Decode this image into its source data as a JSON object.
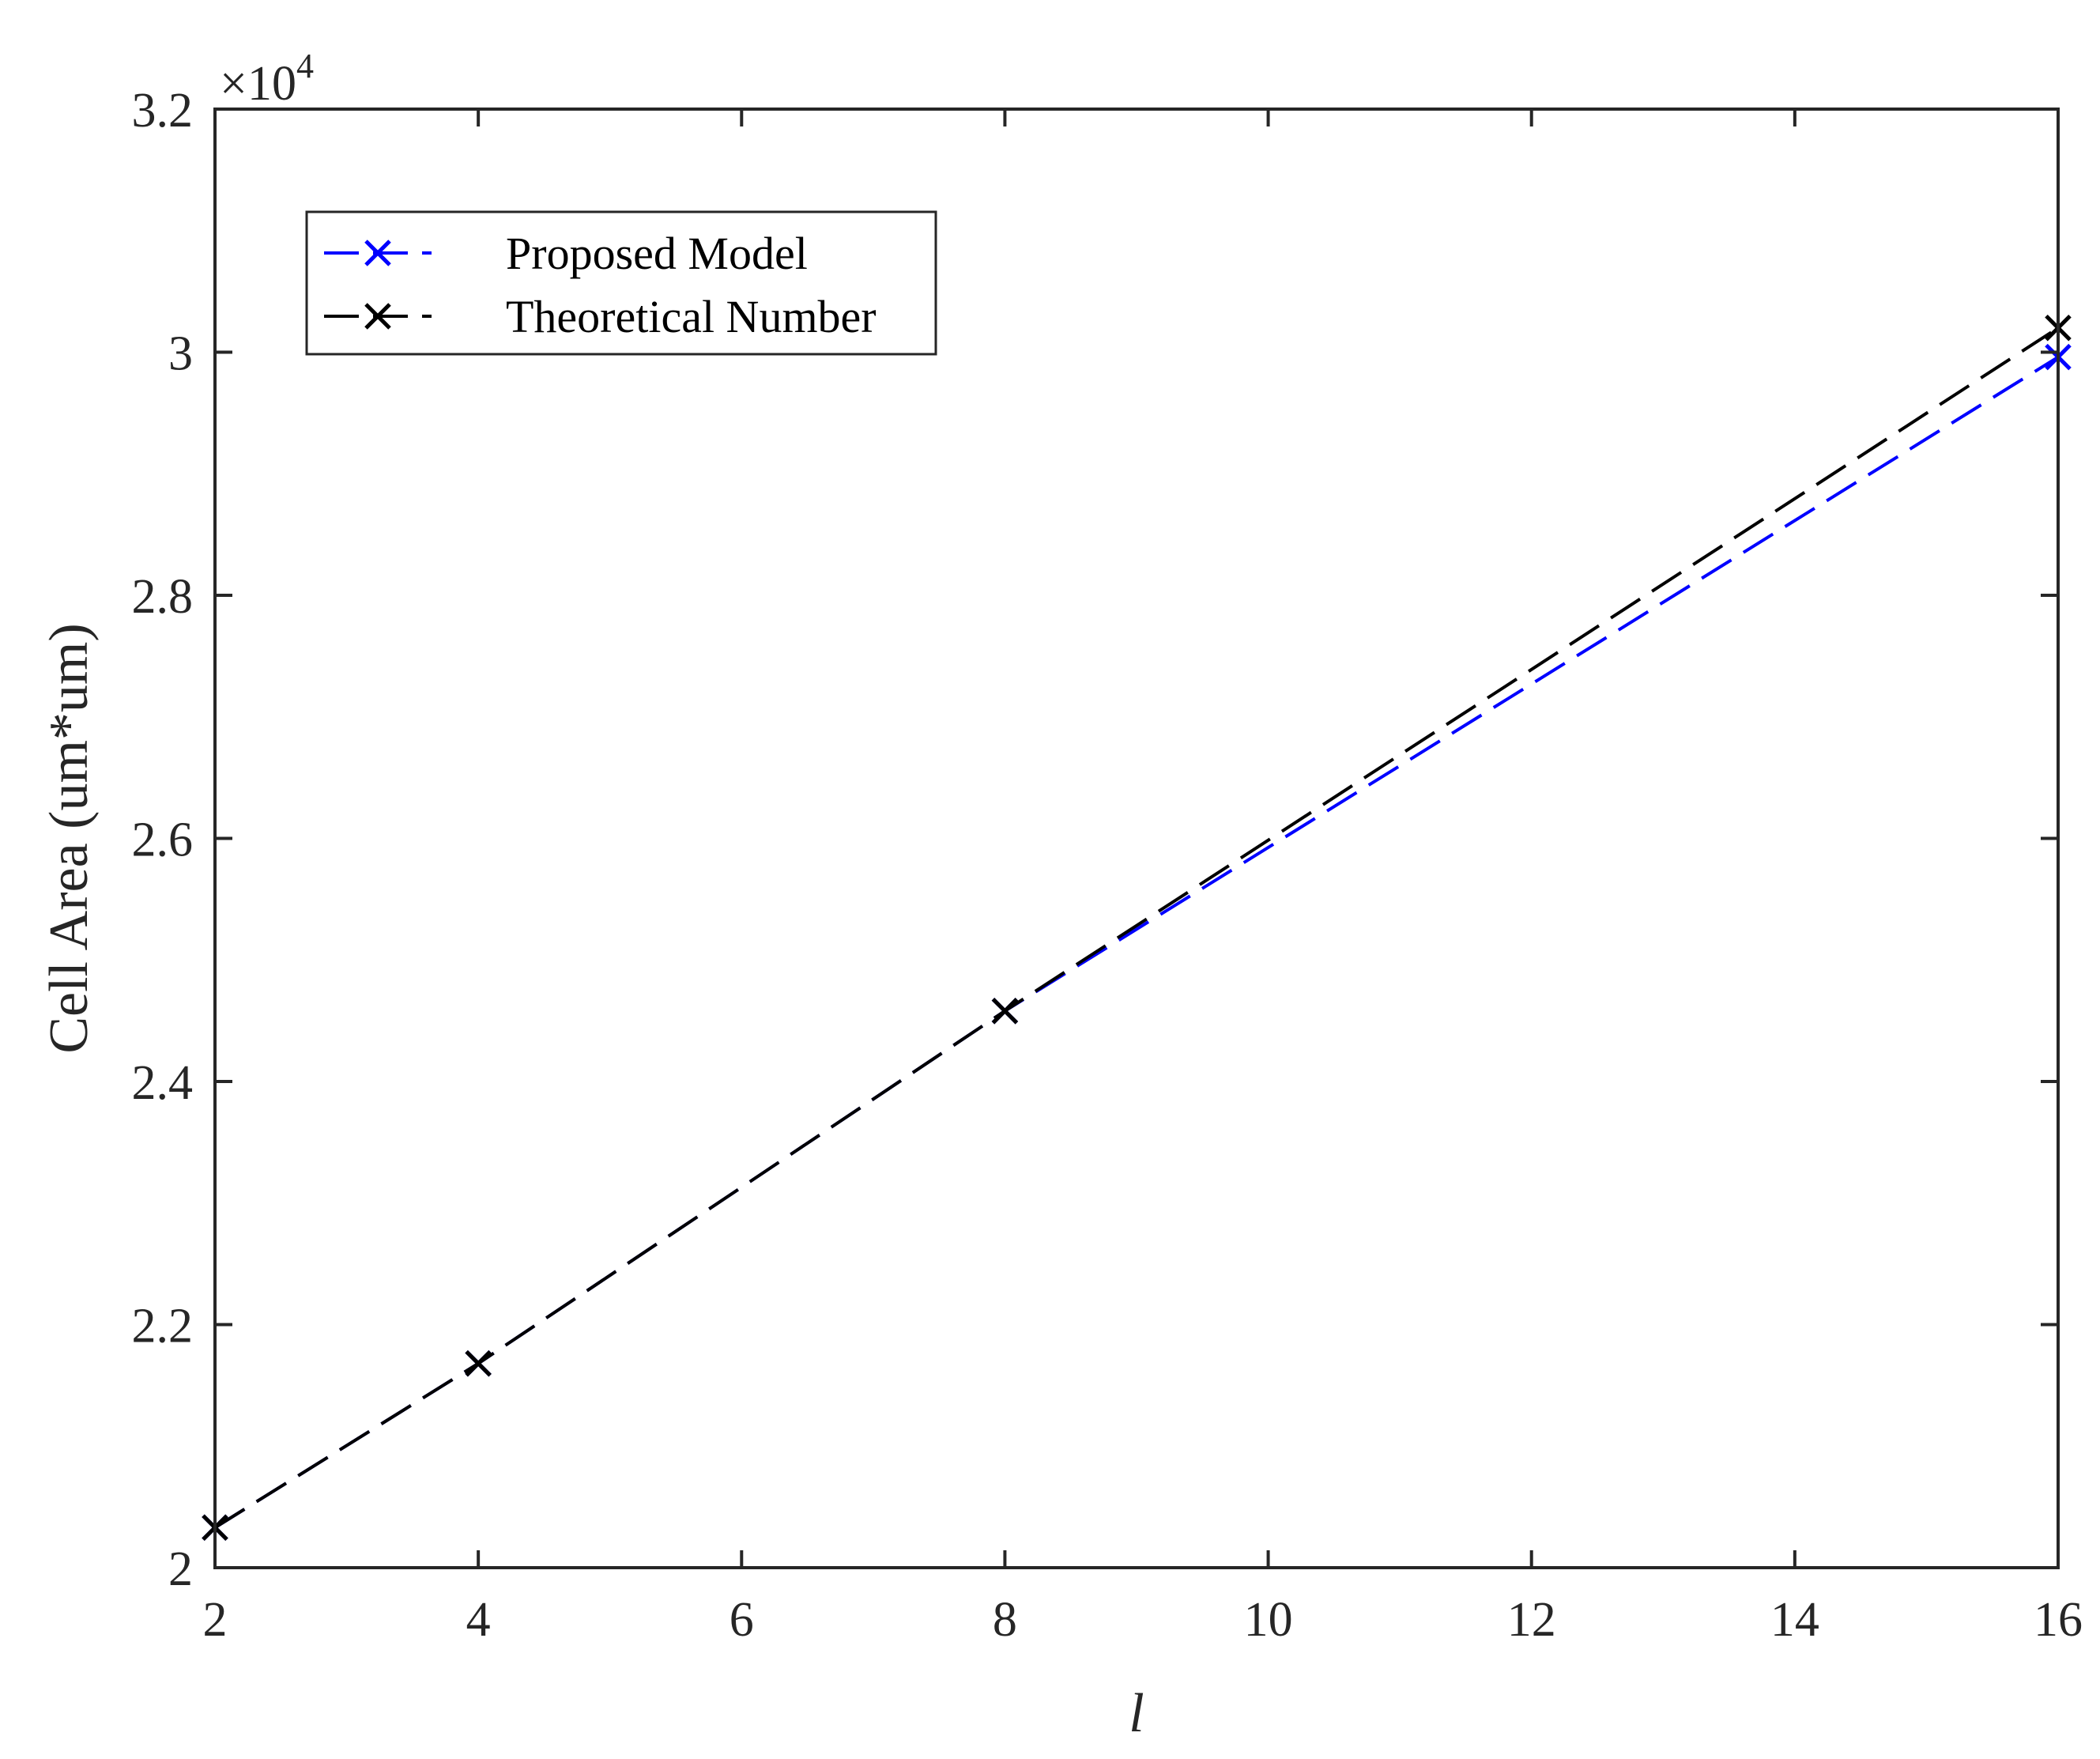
{
  "chart_data": {
    "type": "line",
    "xlabel": "l",
    "ylabel": "Cell Area (um*um)",
    "y_exponent": {
      "base": "×10",
      "power": "4"
    },
    "xlim": [
      2,
      16
    ],
    "ylim": [
      20000,
      32000
    ],
    "x_ticks": [
      "2",
      "4",
      "6",
      "8",
      "10",
      "12",
      "14",
      "16"
    ],
    "y_ticks": [
      "2",
      "2.2",
      "2.4",
      "2.6",
      "2.8",
      "3",
      "3.2"
    ],
    "grid": false,
    "legend_position": "top-left",
    "series": [
      {
        "name": "Proposed Model",
        "color": "#0000ff",
        "line_style": "dashed",
        "marker": "x",
        "x": [
          2,
          4,
          8,
          16
        ],
        "y": [
          20330,
          21680,
          24580,
          29960
        ]
      },
      {
        "name": "Theoretical Number",
        "color": "#000000",
        "line_style": "dashed",
        "marker": "x",
        "x": [
          2,
          4,
          8,
          16
        ],
        "y": [
          20330,
          21680,
          24580,
          30200
        ]
      }
    ]
  }
}
